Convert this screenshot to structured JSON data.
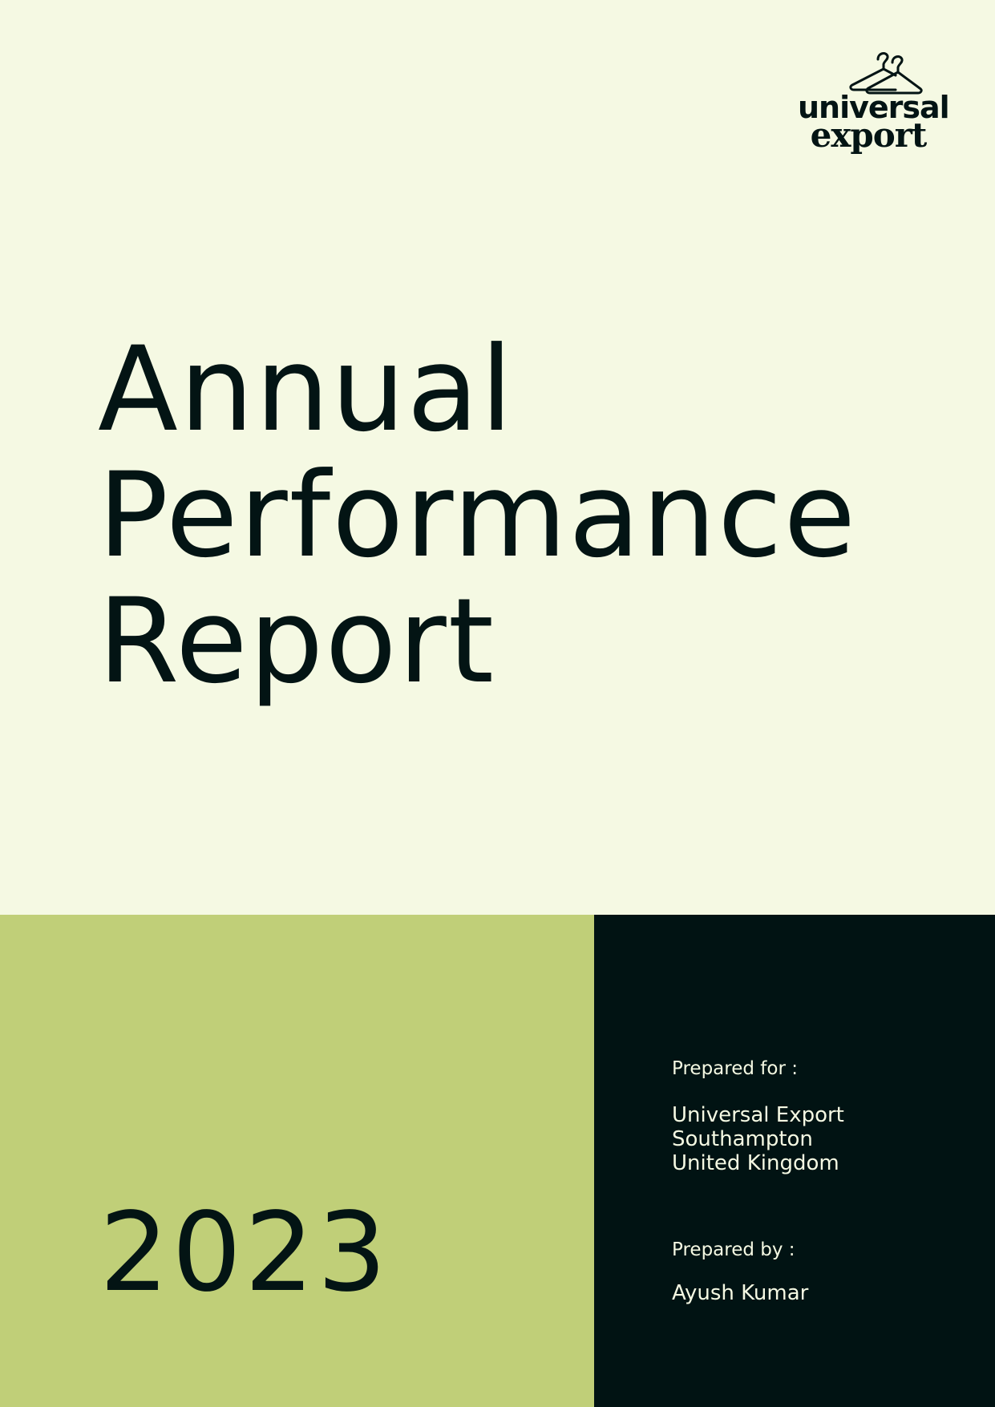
{
  "logo": {
    "line1": "universal",
    "line2": "export",
    "icon": "clothes-hanger-icon"
  },
  "title": {
    "lines": [
      "Annual",
      "Performance",
      "Report"
    ]
  },
  "year": "2023",
  "prepared_for": {
    "label": "Prepared for :",
    "lines": [
      "Universal Export",
      "Southampton",
      "United Kingdom"
    ]
  },
  "prepared_by": {
    "label": "Prepared by :",
    "name": "Ayush Kumar"
  },
  "colors": {
    "background": "#f5f9e3",
    "accent_green": "#c0cf78",
    "dark": "#011313"
  }
}
